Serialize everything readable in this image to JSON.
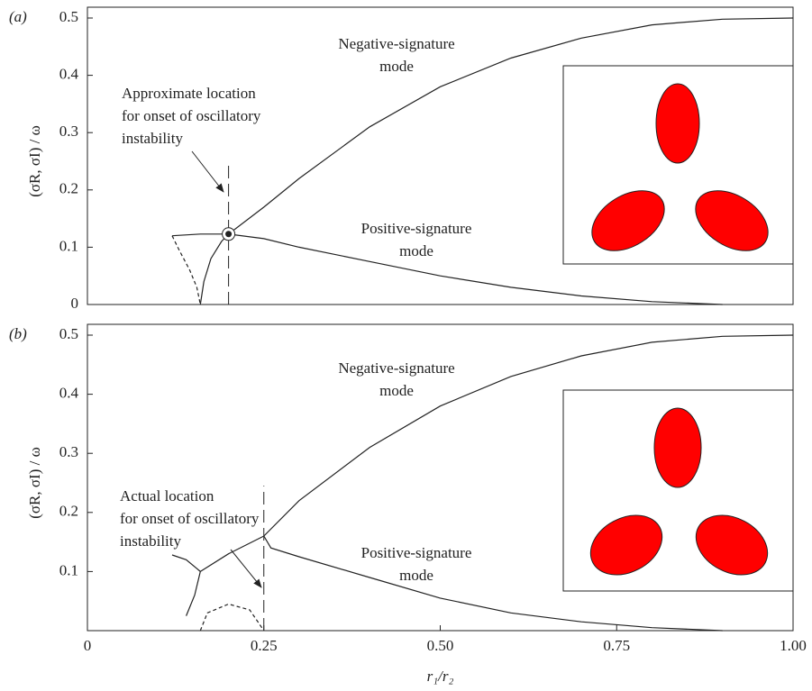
{
  "chart_data": [
    {
      "type": "line",
      "panel_label": "(a)",
      "ylabel": "(σR, σI) / ω",
      "xlim": [
        0,
        1
      ],
      "ylim": [
        0,
        0.5
      ],
      "yticks": [
        0,
        0.1,
        0.2,
        0.3,
        0.4,
        0.5
      ],
      "series": [
        {
          "color": "#222",
          "dash": false,
          "x": [
            0.16,
            0.165,
            0.175,
            0.19,
            0.2,
            0.25,
            0.3,
            0.4,
            0.5,
            0.6,
            0.7,
            0.8,
            0.9,
            1.0
          ],
          "values": [
            0,
            0.04,
            0.08,
            0.11,
            0.123,
            0.17,
            0.22,
            0.31,
            0.38,
            0.43,
            0.465,
            0.488,
            0.498,
            0.5
          ]
        },
        {
          "color": "#222",
          "dash": false,
          "x": [
            0.12,
            0.16,
            0.2,
            0.25,
            0.3,
            0.4,
            0.5,
            0.6,
            0.7,
            0.8,
            0.9
          ],
          "values": [
            0.12,
            0.123,
            0.123,
            0.115,
            0.1,
            0.075,
            0.05,
            0.03,
            0.015,
            0.005,
            0
          ]
        },
        {
          "color": "#222",
          "dash": true,
          "x": [
            0.12,
            0.13,
            0.145,
            0.155,
            0.16
          ],
          "values": [
            0.12,
            0.095,
            0.06,
            0.03,
            0
          ]
        }
      ],
      "vline": {
        "x": 0.2,
        "ymax": 0.25
      },
      "point": {
        "x": 0.2,
        "y": 0.123
      },
      "annotations": [
        {
          "lines": [
            "Approximate location",
            "for onset of oscillatory",
            "instability"
          ]
        },
        {
          "lines": [
            "Negative-signature",
            "mode"
          ]
        },
        {
          "lines": [
            "Positive-signature",
            "mode"
          ]
        }
      ]
    },
    {
      "type": "line",
      "panel_label": "(b)",
      "ylabel": "(σR, σI) / ω",
      "xlabel": "r₁/r₂",
      "xlim": [
        0,
        1
      ],
      "ylim": [
        0,
        0.5
      ],
      "yticks": [
        0.1,
        0.2,
        0.3,
        0.4,
        0.5
      ],
      "xticks": [
        0,
        0.25,
        {
          "value": 0.5,
          "label": "0.50"
        },
        0.75,
        {
          "value": 1,
          "label": "1.00"
        }
      ],
      "series": [
        {
          "color": "#222",
          "dash": false,
          "x": [
            0.25,
            0.3,
            0.4,
            0.5,
            0.6,
            0.7,
            0.8,
            0.9,
            1.0
          ],
          "values": [
            0.16,
            0.22,
            0.31,
            0.38,
            0.43,
            0.465,
            0.488,
            0.498,
            0.5
          ]
        },
        {
          "color": "#222",
          "dash": false,
          "x": [
            0.25,
            0.26,
            0.3,
            0.4,
            0.5,
            0.6,
            0.7,
            0.8,
            0.9
          ],
          "values": [
            0.16,
            0.14,
            0.125,
            0.09,
            0.055,
            0.03,
            0.015,
            0.005,
            0
          ]
        },
        {
          "color": "#222",
          "dash": false,
          "x": [
            0.16,
            0.2,
            0.25
          ],
          "values": [
            0.1,
            0.13,
            0.16
          ]
        },
        {
          "color": "#222",
          "dash": false,
          "x": [
            0.12,
            0.14,
            0.155,
            0.16,
            0.152,
            0.14
          ],
          "values": [
            0.128,
            0.12,
            0.105,
            0.1,
            0.06,
            0.025
          ]
        },
        {
          "color": "#222",
          "dash": true,
          "x": [
            0.16,
            0.17,
            0.2,
            0.23,
            0.25
          ],
          "values": [
            0,
            0.03,
            0.045,
            0.035,
            0
          ]
        }
      ],
      "vline": {
        "x": 0.25,
        "ymax": 0.245
      },
      "annotations": [
        {
          "lines": [
            "Actual location",
            "for onset of oscillatory",
            "instability"
          ]
        },
        {
          "lines": [
            "Negative-signature",
            "mode"
          ]
        },
        {
          "lines": [
            "Positive-signature",
            "mode"
          ]
        }
      ]
    }
  ]
}
